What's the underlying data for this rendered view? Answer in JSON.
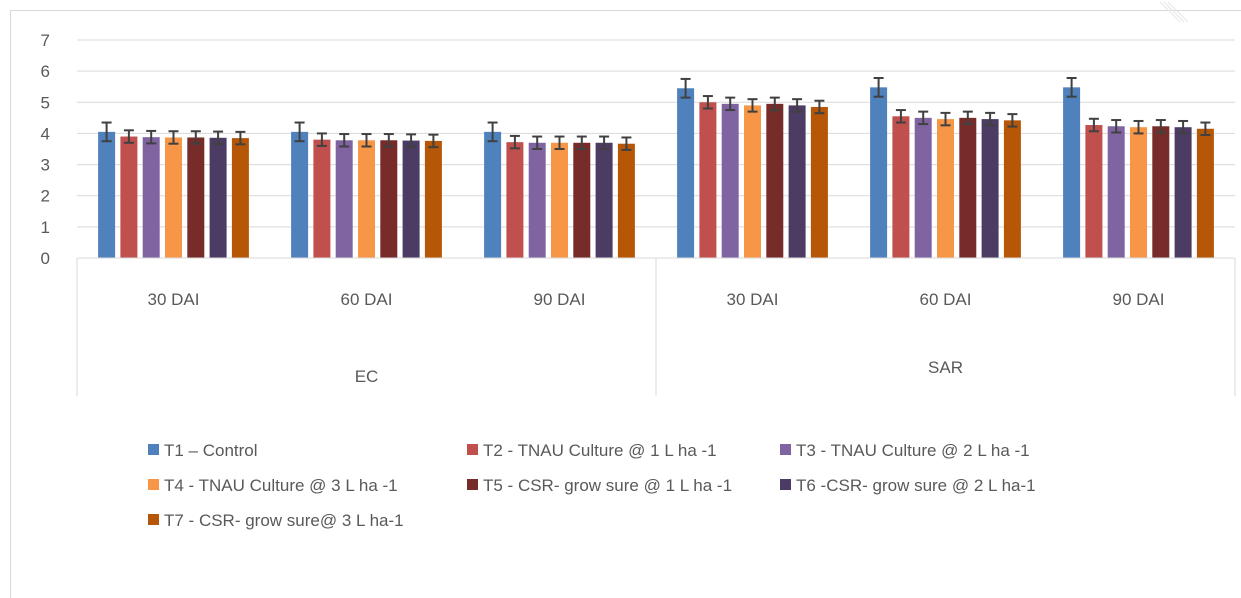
{
  "chart_data": {
    "type": "bar",
    "title": "",
    "xlabel": "",
    "ylabel": "",
    "ylim": [
      0,
      7
    ],
    "yticks": [
      0,
      1,
      2,
      3,
      4,
      5,
      6,
      7
    ],
    "grid": true,
    "legend_position": "bottom",
    "groups": [
      {
        "name": "EC",
        "categories": [
          "30 DAI",
          "60 DAI",
          "90 DAI"
        ]
      },
      {
        "name": "SAR",
        "categories": [
          "30 DAI",
          "60 DAI",
          "90 DAI"
        ]
      }
    ],
    "series": [
      {
        "name": "T1 – Control",
        "color": "#4f81bd",
        "values": [
          4.05,
          4.05,
          4.05,
          5.45,
          5.48,
          5.48
        ],
        "errors": [
          0.3,
          0.3,
          0.3,
          0.3,
          0.3,
          0.3
        ]
      },
      {
        "name": "T2 - TNAU Culture @ 1 L ha -1",
        "color": "#c0504d",
        "values": [
          3.9,
          3.8,
          3.72,
          5.0,
          4.55,
          4.27
        ],
        "errors": [
          0.2,
          0.2,
          0.2,
          0.2,
          0.2,
          0.2
        ]
      },
      {
        "name": "T3 - TNAU Culture @ 2 L ha -1",
        "color": "#8064a2",
        "values": [
          3.88,
          3.78,
          3.7,
          4.95,
          4.5,
          4.23
        ],
        "errors": [
          0.2,
          0.2,
          0.2,
          0.2,
          0.2,
          0.2
        ]
      },
      {
        "name": "T4 - TNAU Culture @ 3 L ha -1",
        "color": "#f79646",
        "values": [
          3.87,
          3.78,
          3.7,
          4.9,
          4.46,
          4.2
        ],
        "errors": [
          0.2,
          0.2,
          0.2,
          0.2,
          0.2,
          0.2
        ]
      },
      {
        "name": "T5 - CSR- grow sure @ 1 L ha -1",
        "color": "#772c2a",
        "values": [
          3.87,
          3.78,
          3.7,
          4.95,
          4.5,
          4.23
        ],
        "errors": [
          0.2,
          0.2,
          0.2,
          0.2,
          0.2,
          0.2
        ]
      },
      {
        "name": "T6 -CSR- grow sure @ 2 L ha-1",
        "color": "#4c3b62",
        "values": [
          3.86,
          3.77,
          3.7,
          4.9,
          4.46,
          4.2
        ],
        "errors": [
          0.2,
          0.2,
          0.2,
          0.2,
          0.2,
          0.2
        ]
      },
      {
        "name": "T7 - CSR- grow sure@ 3 L ha-1",
        "color": "#b65708",
        "values": [
          3.85,
          3.76,
          3.67,
          4.85,
          4.42,
          4.15
        ],
        "errors": [
          0.2,
          0.2,
          0.2,
          0.2,
          0.2,
          0.2
        ]
      }
    ],
    "colors": {
      "axis": "#d9d9d9",
      "gridline": "#d9d9d9",
      "text": "#595959",
      "errorbar": "#404040"
    }
  }
}
